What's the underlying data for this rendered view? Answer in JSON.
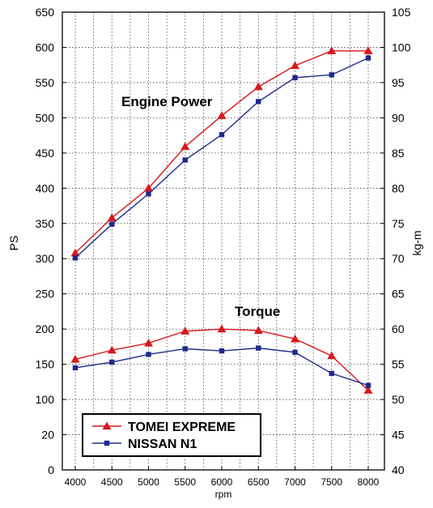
{
  "chart_data": {
    "type": "line",
    "xlabel": "rpm",
    "ylabel_left": "PS",
    "ylabel_right": "kg-m",
    "x": [
      4000,
      4500,
      5000,
      5500,
      6000,
      6500,
      7000,
      7500,
      8000
    ],
    "x_ticks": [
      "4000",
      "4500",
      "5000",
      "5500",
      "6000",
      "6500",
      "7000",
      "7500",
      "8000"
    ],
    "left_ticks": [
      "0",
      "20",
      "100",
      "150",
      "200",
      "250",
      "300",
      "350",
      "400",
      "450",
      "500",
      "550",
      "600",
      "650"
    ],
    "right_ticks": [
      "40",
      "45",
      "50",
      "55",
      "60",
      "65",
      "70",
      "75",
      "80",
      "85",
      "90",
      "95",
      "100",
      "105"
    ],
    "right_range": [
      40,
      105
    ],
    "grid": true,
    "legend_position": "bottom-left",
    "annotations": [
      {
        "text": "Engine Power",
        "series_group": "power"
      },
      {
        "text": "Torque",
        "series_group": "torque"
      }
    ],
    "series": [
      {
        "name": "TOMEI EXPREME",
        "group": "power",
        "marker": "triangle",
        "color": "#d7191c",
        "axis": "left",
        "values": [
          308,
          358,
          400,
          459,
          503,
          544,
          574,
          595,
          595
        ]
      },
      {
        "name": "NISSAN N1",
        "group": "power",
        "marker": "square",
        "color": "#1f2a8a",
        "axis": "left",
        "values": [
          301,
          349,
          392,
          440,
          476,
          523,
          557,
          561,
          585
        ]
      },
      {
        "name": "TOMEI EXPREME",
        "group": "torque",
        "marker": "triangle",
        "color": "#d7191c",
        "axis": "right",
        "values": [
          55.7,
          57.0,
          58.0,
          59.7,
          60.0,
          59.8,
          58.6,
          56.2,
          51.3
        ]
      },
      {
        "name": "NISSAN N1",
        "group": "torque",
        "marker": "square",
        "color": "#1f2a8a",
        "axis": "right",
        "values": [
          54.5,
          55.3,
          56.4,
          57.2,
          56.9,
          57.3,
          56.7,
          53.7,
          52.0
        ]
      }
    ],
    "legend": [
      {
        "label": "TOMEI EXPREME",
        "marker": "triangle",
        "color": "#d7191c"
      },
      {
        "label": "NISSAN N1",
        "marker": "square",
        "color": "#1f2a8a"
      }
    ]
  }
}
